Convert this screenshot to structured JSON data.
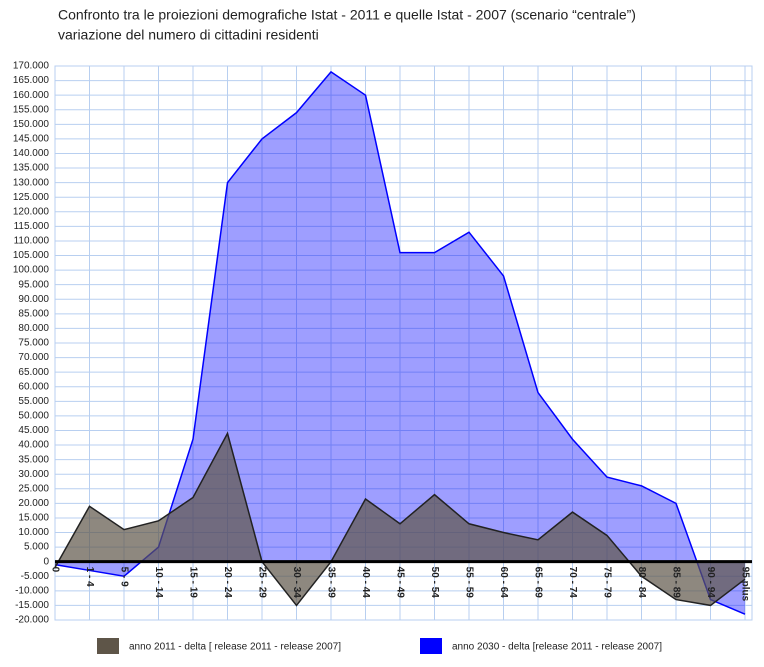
{
  "chart_data": {
    "type": "area",
    "title": "Confronto tra le proiezioni demografiche Istat - 2011 e quelle Istat - 2007 (scenario “centrale”)",
    "subtitle": "variazione del numero di cittadini residenti",
    "categories": [
      "0",
      "1 - 4",
      "5 - 9",
      "10 - 14",
      "15 - 19",
      "20 - 24",
      "25 - 29",
      "30 - 34",
      "35 - 39",
      "40 - 44",
      "45 - 49",
      "50 - 54",
      "55 - 59",
      "60 - 64",
      "65 - 69",
      "70 - 74",
      "75 - 79",
      "80 - 84",
      "85 - 89",
      "90 - 94",
      "95 plus"
    ],
    "series": [
      {
        "name": "anno 2030 -  delta [release 2011 - release 2007]",
        "color": "#0000ff",
        "values": [
          -1000,
          -3000,
          -5000,
          5000,
          42000,
          130000,
          145000,
          154000,
          168000,
          160000,
          106000,
          106000,
          113000,
          98000,
          58000,
          42000,
          29000,
          26000,
          20000,
          -13000,
          -18000
        ]
      },
      {
        "name": "anno 2011 - delta [ release 2011 - release 2007]",
        "color": "#5e5548",
        "values": [
          -2000,
          19000,
          11000,
          14000,
          22000,
          44000,
          0,
          -15000,
          0,
          21500,
          13000,
          23000,
          13000,
          10000,
          7500,
          17000,
          9000,
          -5000,
          -13000,
          -15000,
          -6000
        ]
      }
    ],
    "ylim": [
      -20000,
      170000
    ],
    "yticks": [
      {
        "value": -20000,
        "label": "-20.000"
      },
      {
        "value": -15000,
        "label": "-15.000"
      },
      {
        "value": -10000,
        "label": "-10.000"
      },
      {
        "value": -5000,
        "label": "-5.000"
      },
      0,
      {
        "value": 5000,
        "label": "5.000"
      },
      {
        "value": 10000,
        "label": "10.000"
      },
      {
        "value": 15000,
        "label": "15.000"
      },
      {
        "value": 20000,
        "label": "20.000"
      },
      {
        "value": 25000,
        "label": "25.000"
      },
      {
        "value": 30000,
        "label": "30.000"
      },
      {
        "value": 35000,
        "label": "35.000"
      },
      {
        "value": 40000,
        "label": "40.000"
      },
      {
        "value": 45000,
        "label": "45.000"
      },
      {
        "value": 50000,
        "label": "50.000"
      },
      {
        "value": 55000,
        "label": "55.000"
      },
      {
        "value": 60000,
        "label": "60.000"
      },
      {
        "value": 65000,
        "label": "65.000"
      },
      {
        "value": 70000,
        "label": "70.000"
      },
      {
        "value": 75000,
        "label": "75.000"
      },
      {
        "value": 80000,
        "label": "80.000"
      },
      {
        "value": 85000,
        "label": "85.000"
      },
      {
        "value": 90000,
        "label": "90.000"
      },
      {
        "value": 95000,
        "label": "95.000"
      },
      {
        "value": 100000,
        "label": "100.000"
      },
      {
        "value": 105000,
        "label": "105.000"
      },
      {
        "value": 110000,
        "label": "110.000"
      },
      {
        "value": 115000,
        "label": "115.000"
      },
      {
        "value": 120000,
        "label": "120.000"
      },
      {
        "value": 125000,
        "label": "125.000"
      },
      {
        "value": 130000,
        "label": "130.000"
      },
      {
        "value": 135000,
        "label": "135.000"
      },
      {
        "value": 140000,
        "label": "140.000"
      },
      {
        "value": 145000,
        "label": "145.000"
      },
      {
        "value": 150000,
        "label": "150.000"
      },
      {
        "value": 155000,
        "label": "155.000"
      },
      {
        "value": 160000,
        "label": "160.000"
      },
      {
        "value": 165000,
        "label": "165.000"
      },
      {
        "value": 170000,
        "label": "170.000"
      }
    ],
    "grid": true
  }
}
